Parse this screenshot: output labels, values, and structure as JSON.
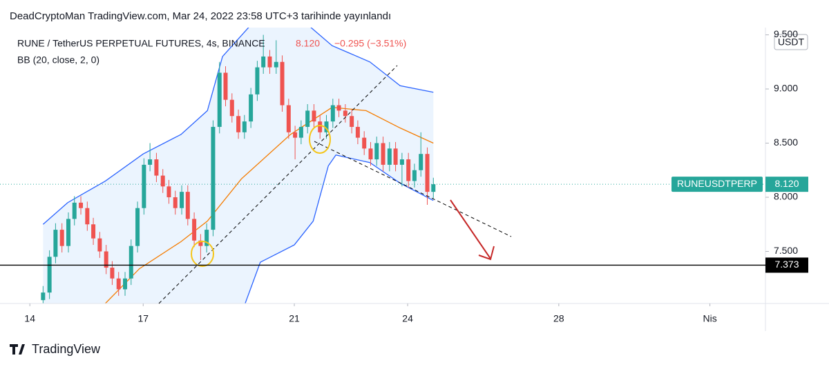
{
  "header": {
    "published": "DeadCryptoMan TradingView.com, Mar 24, 2022 23:58 UTC+3 tarihinde yayınlandı",
    "symbol": "RUNE / TetherUS PERPETUAL FUTURES, 4s, BINANCE",
    "quote": "8.120",
    "change": "−0.295 (−3.51%)",
    "indicator": "BB (20, close, 2, 0)",
    "currency": "USDT",
    "brand": "TradingView"
  },
  "chart_data": {
    "type": "candlestick",
    "up_color": "#26a69a",
    "down_color": "#ef5350",
    "x": [
      14.35,
      14.52,
      14.68,
      14.85,
      15.02,
      15.18,
      15.35,
      15.52,
      15.68,
      15.85,
      16.02,
      16.18,
      16.35,
      16.52,
      16.68,
      16.85,
      17.02,
      17.18,
      17.35,
      17.52,
      17.68,
      17.85,
      18.02,
      18.18,
      18.35,
      18.52,
      18.68,
      18.85,
      19.02,
      19.18,
      19.35,
      19.52,
      19.68,
      19.85,
      20.02,
      20.18,
      20.35,
      20.52,
      20.68,
      20.85,
      21.02,
      21.18,
      21.35,
      21.52,
      21.68,
      21.85,
      22.02,
      22.18,
      22.35,
      22.52,
      22.68,
      22.85,
      23.02,
      23.18,
      23.35,
      23.52,
      23.68,
      23.85,
      24.02,
      24.18,
      24.35,
      24.52,
      24.68
    ],
    "open": [
      7.05,
      7.12,
      7.45,
      7.7,
      7.55,
      7.8,
      7.95,
      7.9,
      7.75,
      7.62,
      7.5,
      7.35,
      7.25,
      7.15,
      7.25,
      7.55,
      7.9,
      8.3,
      8.35,
      8.2,
      8.1,
      8.0,
      7.9,
      8.05,
      7.8,
      7.6,
      7.55,
      7.7,
      8.65,
      9.15,
      8.9,
      8.75,
      8.6,
      8.7,
      8.95,
      9.2,
      9.3,
      9.2,
      9.25,
      8.85,
      8.6,
      8.55,
      8.65,
      8.8,
      8.7,
      8.6,
      8.7,
      8.85,
      8.8,
      8.75,
      8.65,
      8.55,
      8.45,
      8.35,
      8.5,
      8.3,
      8.45,
      8.3,
      8.35,
      8.15,
      8.25,
      8.4,
      8.05
    ],
    "high": [
      7.18,
      7.51,
      7.76,
      7.76,
      7.86,
      8.01,
      8.01,
      7.96,
      7.81,
      7.68,
      7.56,
      7.41,
      7.31,
      7.31,
      7.61,
      7.96,
      8.36,
      8.5,
      8.41,
      8.26,
      8.16,
      8.06,
      8.11,
      8.11,
      7.86,
      7.66,
      7.76,
      8.71,
      9.25,
      9.21,
      8.96,
      8.81,
      8.76,
      9.01,
      9.26,
      9.5,
      9.36,
      9.45,
      9.31,
      8.91,
      8.66,
      8.71,
      8.86,
      8.86,
      8.76,
      8.76,
      8.91,
      8.91,
      8.86,
      8.81,
      8.71,
      8.61,
      8.51,
      8.56,
      8.56,
      8.51,
      8.51,
      8.41,
      8.41,
      8.31,
      8.6,
      8.46,
      8.18
    ],
    "low": [
      6.99,
      7.06,
      7.39,
      7.49,
      7.49,
      7.74,
      7.84,
      7.69,
      7.56,
      7.44,
      7.29,
      7.19,
      7.09,
      7.09,
      7.19,
      7.49,
      7.84,
      8.24,
      8.14,
      8.04,
      7.94,
      7.84,
      7.84,
      7.74,
      7.54,
      7.42,
      7.49,
      7.64,
      8.59,
      8.84,
      8.69,
      8.54,
      8.54,
      8.64,
      8.89,
      9.14,
      9.14,
      9.14,
      8.79,
      8.54,
      8.35,
      8.49,
      8.59,
      8.64,
      8.54,
      8.54,
      8.64,
      8.74,
      8.69,
      8.59,
      8.49,
      8.39,
      8.29,
      8.29,
      8.24,
      8.24,
      8.24,
      8.1,
      8.09,
      8.09,
      8.19,
      7.93,
      7.99
    ],
    "close": [
      7.12,
      7.45,
      7.7,
      7.55,
      7.8,
      7.95,
      7.9,
      7.75,
      7.62,
      7.5,
      7.35,
      7.25,
      7.15,
      7.25,
      7.55,
      7.9,
      8.3,
      8.35,
      8.2,
      8.1,
      8.0,
      7.9,
      8.05,
      7.8,
      7.6,
      7.55,
      7.7,
      8.65,
      9.15,
      8.9,
      8.75,
      8.6,
      8.7,
      8.95,
      9.2,
      9.3,
      9.2,
      9.25,
      8.85,
      8.6,
      8.55,
      8.65,
      8.8,
      8.7,
      8.6,
      8.7,
      8.85,
      8.8,
      8.75,
      8.65,
      8.55,
      8.45,
      8.35,
      8.5,
      8.3,
      8.45,
      8.3,
      8.35,
      8.15,
      8.25,
      8.4,
      8.05,
      8.12
    ],
    "bands": [
      {
        "color": "#2962ff",
        "x": [
          14.35,
          15,
          16,
          17,
          18,
          18.7,
          19.1,
          20,
          21,
          22,
          23,
          23.8,
          24.68
        ],
        "values": [
          7.75,
          7.95,
          8.15,
          8.4,
          8.58,
          8.8,
          9.3,
          9.65,
          9.7,
          9.4,
          9.25,
          9.03,
          8.97
        ]
      },
      {
        "color": "#f57c00",
        "x": [
          16.0,
          16.9,
          18.0,
          18.7,
          19.6,
          20.9,
          22,
          22.9,
          23.8,
          24.68
        ],
        "values": [
          7.02,
          7.34,
          7.59,
          7.78,
          8.17,
          8.58,
          8.83,
          8.8,
          8.64,
          8.5
        ]
      },
      {
        "color": "#2962ff",
        "x": [
          19.7,
          20.1,
          21,
          21.5,
          21.9,
          22.1,
          23,
          23.8,
          24.68
        ],
        "values": [
          7.02,
          7.4,
          7.56,
          7.78,
          8.29,
          8.39,
          8.32,
          8.13,
          7.97
        ]
      }
    ],
    "band_fill": "#e3effd",
    "xlim": [
      13.21,
      33.47
    ],
    "ylim": [
      7.019,
      9.567
    ],
    "xticks": [
      14,
      17,
      21,
      24,
      28,
      {
        "value": 32,
        "label": "Nis"
      }
    ],
    "yticks": [
      {
        "value": 7.5,
        "label": "7.500"
      },
      {
        "value": 8,
        "label": "8.000"
      },
      {
        "value": 8.5,
        "label": "8.500"
      },
      {
        "value": 9,
        "label": "9.000"
      },
      {
        "value": 9.5,
        "label": "9.500"
      }
    ],
    "price_line": {
      "value": 8.12,
      "label": "8.120",
      "symbol": "RUNEUSDTPERP",
      "color": "#26a69a"
    },
    "level_line": {
      "value": 7.373,
      "color": "#000000"
    }
  }
}
